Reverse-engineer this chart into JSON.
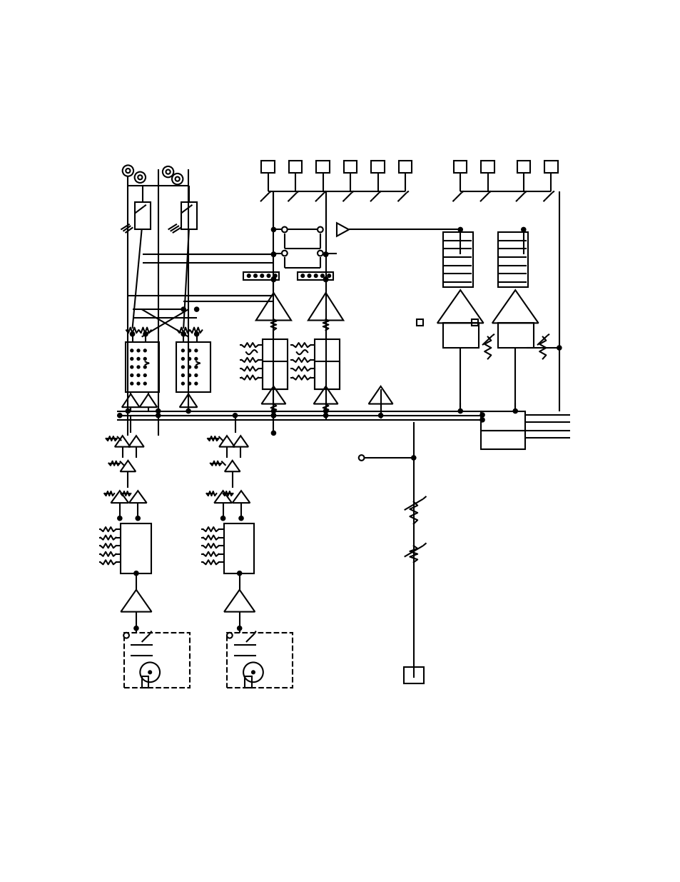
{
  "bg_color": "#ffffff",
  "line_color": "#000000",
  "lw": 1.5,
  "lw2": 2.5,
  "figsize": [
    9.54,
    12.35
  ],
  "dpi": 100
}
